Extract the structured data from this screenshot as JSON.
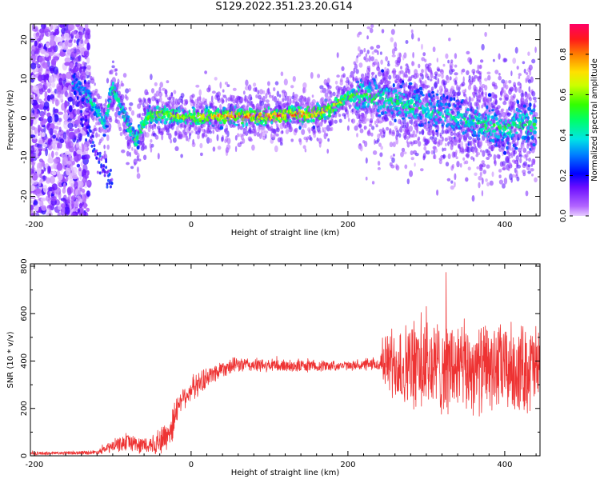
{
  "figure": {
    "title": "S129.2022.351.23.20.G14"
  },
  "colors": {
    "snr_line": "#ee3333",
    "axis": "#000000"
  },
  "chart_data": [
    {
      "type": "heatmap",
      "name": "spectrogram",
      "xlabel": "Height of straight line (km)",
      "ylabel": "Frequency (Hz)",
      "xlim": [
        -205,
        445
      ],
      "ylim": [
        -25,
        24
      ],
      "x_ticks": [
        -200,
        0,
        200,
        400
      ],
      "y_ticks": [
        -20,
        -10,
        0,
        10,
        20
      ],
      "colorbar": {
        "label": "Normalized spectral amplitude",
        "range": [
          0.0,
          0.95
        ],
        "ticks": [
          "0.0",
          "0.2",
          "0.4",
          "0.6",
          "0.8"
        ],
        "tick_values": [
          0.0,
          0.2,
          0.4,
          0.6,
          0.8
        ]
      },
      "ridge": {
        "x": [
          -150,
          -140,
          -130,
          -120,
          -110,
          -100,
          -90,
          -80,
          -70,
          -60,
          -50,
          -40,
          -20,
          0,
          20,
          50,
          80,
          100,
          130,
          160,
          180,
          200,
          220,
          240,
          260,
          280,
          300,
          320,
          340,
          360,
          380,
          400,
          420,
          440
        ],
        "freq": [
          9,
          7.5,
          5,
          2,
          -2,
          8,
          3,
          -2,
          -6,
          -1,
          1,
          1,
          0.5,
          0,
          0.5,
          0.5,
          0.5,
          0.5,
          0.8,
          1,
          2.5,
          5.5,
          6,
          5,
          4,
          3,
          2.5,
          1,
          0,
          -1,
          -2,
          -2.5,
          -1.5,
          -2
        ],
        "peak_amplitude": [
          0.3,
          0.3,
          0.4,
          0.35,
          0.4,
          0.45,
          0.45,
          0.45,
          0.5,
          0.55,
          0.6,
          0.65,
          0.65,
          0.7,
          0.72,
          0.8,
          0.85,
          0.85,
          0.82,
          0.78,
          0.7,
          0.55,
          0.5,
          0.45,
          0.45,
          0.45,
          0.4,
          0.4,
          0.4,
          0.4,
          0.45,
          0.45,
          0.45,
          0.45
        ]
      },
      "secondary_ridge": {
        "x": [
          -140,
          -130,
          -120,
          -110,
          -100
        ],
        "freq": [
          1,
          -4,
          -9,
          -14,
          -16
        ]
      },
      "noise_region_x": [
        -205,
        -130
      ]
    },
    {
      "type": "line",
      "name": "snr",
      "xlabel": "Height of straight line (km)",
      "ylabel": "SNR (10 * v/v)",
      "xlim": [
        -205,
        445
      ],
      "ylim": [
        0,
        810
      ],
      "x_ticks": [
        -200,
        0,
        200,
        400
      ],
      "y_ticks": [
        0,
        200,
        400,
        600,
        800
      ],
      "series_name": "SNR",
      "envelope": {
        "x": [
          -205,
          -150,
          -120,
          -100,
          -80,
          -60,
          -40,
          -30,
          -25,
          -15,
          0,
          20,
          40,
          60,
          100,
          150,
          200,
          240,
          250,
          270,
          300,
          340,
          380,
          420,
          445
        ],
        "center": [
          10,
          12,
          15,
          40,
          60,
          40,
          60,
          90,
          120,
          230,
          280,
          330,
          370,
          385,
          380,
          380,
          380,
          385,
          400,
          380,
          380,
          370,
          370,
          370,
          370
        ],
        "spread": [
          8,
          8,
          10,
          30,
          40,
          40,
          60,
          80,
          90,
          50,
          60,
          50,
          40,
          35,
          30,
          30,
          20,
          30,
          150,
          200,
          230,
          220,
          210,
          210,
          210
        ]
      }
    }
  ]
}
